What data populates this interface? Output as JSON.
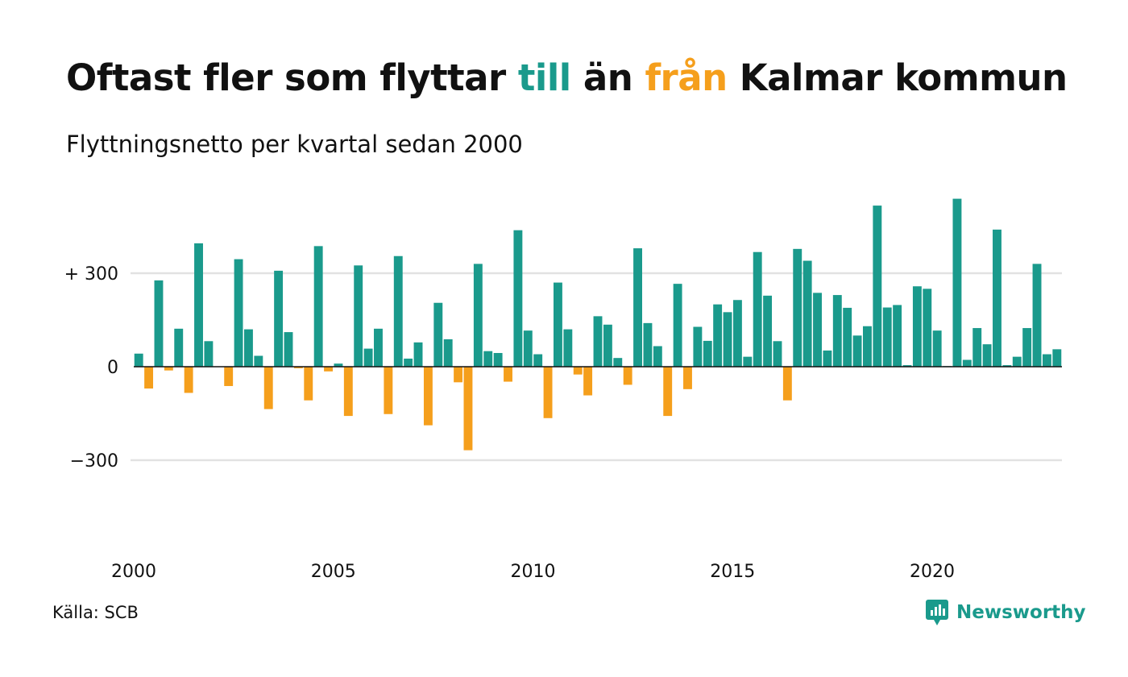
{
  "title": {
    "part1": "Oftast fler som flyttar ",
    "till": "till",
    "part2": " än ",
    "fran": "från",
    "part3": " Kalmar kommun"
  },
  "subtitle": "Flyttningsnetto per kvartal sedan 2000",
  "source": "Källa: SCB",
  "brand": {
    "name": "Newsworthy",
    "icon": "newsworthy-logo-icon"
  },
  "colors": {
    "positive": "#1a9a8c",
    "negative": "#f59f1c",
    "grid": "#e2e2e2",
    "baseline": "#111111",
    "text": "#111111"
  },
  "chart_data": {
    "type": "bar",
    "x_start": "2000 Q1",
    "x_ticks": [
      "2000",
      "2005",
      "2010",
      "2015",
      "2020"
    ],
    "y_ticks": [
      {
        "value": 300,
        "label": "+ 300"
      },
      {
        "value": 0,
        "label": "0"
      },
      {
        "value": -300,
        "label": "−300"
      }
    ],
    "ylim": [
      -600,
      540
    ],
    "grid": true,
    "values": [
      42,
      -70,
      277,
      -12,
      122,
      -84,
      396,
      82,
      0,
      -62,
      345,
      120,
      35,
      -136,
      308,
      111,
      -5,
      -108,
      387,
      -15,
      10,
      -158,
      325,
      58,
      122,
      -152,
      355,
      26,
      78,
      -188,
      205,
      88,
      -50,
      -268,
      330,
      50,
      44,
      -48,
      438,
      116,
      40,
      -165,
      270,
      120,
      -25,
      -92,
      162,
      135,
      28,
      -58,
      380,
      140,
      66,
      -158,
      266,
      -72,
      128,
      83,
      200,
      175,
      214,
      32,
      368,
      228,
      82,
      -108,
      378,
      340,
      237,
      52,
      230,
      189,
      100,
      130,
      517,
      190,
      198,
      5,
      258,
      250,
      116,
      2,
      539,
      22,
      124,
      72,
      440,
      5,
      32,
      124,
      330,
      40,
      56
    ]
  }
}
